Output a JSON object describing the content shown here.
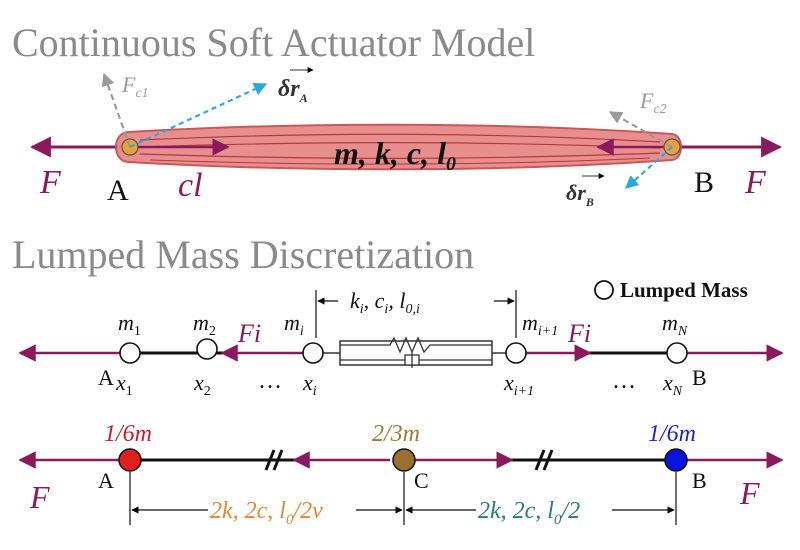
{
  "colors": {
    "force": "#8b1a5c",
    "actuator_fill": "#e8888a",
    "actuator_line": "#b03a3a",
    "dashed_gray": "#9a9a9a",
    "dashed_blue": "#2aa8e0",
    "node_orange": "#f0a030",
    "mass_red": "#e02020",
    "mass_brown": "#9a7030",
    "mass_blue": "#0a14e0",
    "label_red": "#c0202a",
    "label_brown": "#a07a3a",
    "label_blue": "#1a24c8",
    "label_orange": "#e08a30",
    "label_teal": "#2a7a78",
    "title_gray": "#8a8a8a"
  },
  "top": {
    "title": "Continuous Soft Actuator Model",
    "force_left": "F",
    "force_right": "F",
    "point_a": "A",
    "point_b": "B",
    "damping_force": "cl",
    "params": "m, k, c, l",
    "params_sub": "0",
    "fc1_main": "F",
    "fc1_sub": "c1",
    "fc2_main": "F",
    "fc2_sub": "c2",
    "dra_main": "δr",
    "dra_sub": "A",
    "drb_main": "δr",
    "drb_sub": "B"
  },
  "middle": {
    "title": "Lumped Mass Discretization",
    "legend": "Lumped Mass",
    "m1": "m",
    "m1_sub": "1",
    "m2": "m",
    "m2_sub": "2",
    "mi": "m",
    "mi_sub": "i",
    "mi1": "m",
    "mi1_sub": "i+1",
    "mN": "m",
    "mN_sub": "N",
    "x1": "x",
    "x1_sub": "1",
    "x2": "x",
    "x2_sub": "2",
    "xi": "x",
    "xi_sub": "i",
    "xi1": "x",
    "xi1_sub": "i+1",
    "xN": "x",
    "xN_sub": "N",
    "point_a": "A",
    "point_b": "B",
    "fi_left": "Fi",
    "fi_right": "Fi",
    "dots_left": "…",
    "dots_right": "…",
    "element_params": "k",
    "element_k_sub": "i",
    "element_c": "c",
    "element_c_sub": "i",
    "element_l": "l",
    "element_l_sub": "0,i"
  },
  "bottom": {
    "mass_a": "1/6m",
    "mass_c": "2/3m",
    "mass_b": "1/6m",
    "point_a": "A",
    "point_c": "C",
    "point_b": "B",
    "force_left": "F",
    "force_right": "F",
    "left_params": "2k, 2c, l",
    "left_params_sub": "0",
    "left_params_tail": "/2v",
    "right_params": "2k, 2c, l",
    "right_params_sub": "0",
    "right_params_tail": "/2"
  }
}
